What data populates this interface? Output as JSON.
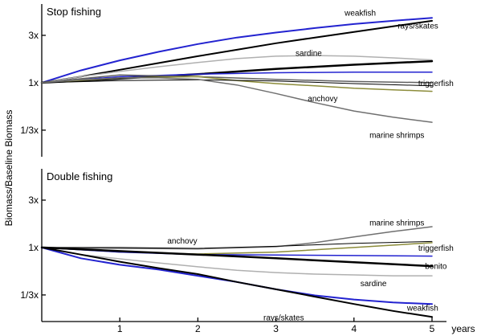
{
  "chart_data": {
    "type": "line",
    "ylabel": "Biomass/Baseline Biomass",
    "x_unit_label": "years",
    "x_ticks": [
      1,
      2,
      3,
      4,
      5
    ],
    "xlim": [
      0,
      5
    ],
    "yscale": "log",
    "y_ticks": [
      {
        "value": 3,
        "label": "3x"
      },
      {
        "value": 1,
        "label": "1x"
      },
      {
        "value": 0.3333,
        "label": "1/3x"
      }
    ],
    "grid": false,
    "legend": "none (direct series labels)",
    "panels": [
      {
        "title": "Stop fishing",
        "ylim": [
          0.18,
          6.2
        ],
        "series": [
          {
            "name": "weakfish",
            "color": "#2323d0",
            "width": 2,
            "x": [
              0,
              0.5,
              1,
              1.5,
              2,
              2.5,
              3,
              3.5,
              4,
              4.5,
              5
            ],
            "y": [
              1,
              1.33,
              1.68,
              2.05,
              2.45,
              2.85,
              3.2,
              3.55,
              3.9,
              4.2,
              4.5
            ]
          },
          {
            "name": "rays/skates",
            "color": "#000000",
            "width": 2,
            "x": [
              0,
              0.5,
              1,
              1.5,
              2,
              2.5,
              3,
              3.5,
              4,
              4.5,
              5
            ],
            "y": [
              1,
              1.15,
              1.35,
              1.58,
              1.85,
              2.15,
              2.5,
              2.85,
              3.25,
              3.7,
              4.2
            ]
          },
          {
            "name": "sardine",
            "color": "#b0b0b0",
            "width": 1.5,
            "x": [
              0,
              0.5,
              1,
              1.5,
              2,
              2.5,
              3,
              3.5,
              4,
              4.5,
              5
            ],
            "y": [
              1,
              1.15,
              1.3,
              1.45,
              1.6,
              1.75,
              1.85,
              1.88,
              1.85,
              1.78,
              1.7
            ]
          },
          {
            "name": "",
            "color": "#000000",
            "width": 2.5,
            "x": [
              0,
              1,
              2,
              3,
              4,
              5
            ],
            "y": [
              1,
              1.1,
              1.22,
              1.38,
              1.52,
              1.65
            ]
          },
          {
            "name": "",
            "color": "#2323d0",
            "width": 1.5,
            "x": [
              0,
              1,
              2,
              3,
              4,
              5
            ],
            "y": [
              1,
              1.15,
              1.22,
              1.26,
              1.28,
              1.28
            ]
          },
          {
            "name": "triggerfish",
            "color": "#606060",
            "width": 1.5,
            "x": [
              0,
              1,
              2,
              3,
              4,
              5
            ],
            "y": [
              1,
              1.2,
              1.15,
              1.08,
              1.03,
              1.0
            ]
          },
          {
            "name": "",
            "color": "#8c8c3a",
            "width": 1.5,
            "x": [
              0,
              1,
              2,
              2.5,
              3,
              3.5,
              4,
              4.5,
              5
            ],
            "y": [
              1,
              1.12,
              1.15,
              1.05,
              0.98,
              0.93,
              0.88,
              0.85,
              0.82
            ]
          },
          {
            "name": "anchovy",
            "color": "#000000",
            "width": 1,
            "x": [
              0,
              1,
              2,
              3,
              4,
              5
            ],
            "y": [
              1,
              1.05,
              1.07,
              1.04,
              0.98,
              0.93
            ]
          },
          {
            "name": "marine shrimps",
            "color": "#707070",
            "width": 1.5,
            "x": [
              0,
              0.5,
              1,
              1.5,
              2,
              2.5,
              3,
              3.5,
              4,
              4.5,
              5
            ],
            "y": [
              1,
              1.07,
              1.12,
              1.12,
              1.08,
              0.95,
              0.78,
              0.63,
              0.52,
              0.45,
              0.4
            ]
          }
        ],
        "labels": [
          {
            "text": "weakfish",
            "x": 4.08,
            "y": 5.1
          },
          {
            "text": "rays/skates",
            "x": 4.82,
            "y": 3.8
          },
          {
            "text": "sardine",
            "x": 3.42,
            "y": 2.0
          },
          {
            "text": "triggerfish",
            "x": 5.05,
            "y": 1.0
          },
          {
            "text": "anchovy",
            "x": 3.6,
            "y": 0.7
          },
          {
            "text": "marine shrimps",
            "x": 4.55,
            "y": 0.3
          }
        ]
      },
      {
        "title": "Double fishing",
        "ylim": [
          0.18,
          6.2
        ],
        "series": [
          {
            "name": "marine shrimps",
            "color": "#707070",
            "width": 1.5,
            "x": [
              0,
              1,
              2,
              3,
              3.5,
              4,
              4.5,
              5
            ],
            "y": [
              1,
              0.98,
              0.97,
              1.02,
              1.12,
              1.28,
              1.45,
              1.62
            ]
          },
          {
            "name": "anchovy",
            "color": "#000000",
            "width": 1,
            "x": [
              0,
              1,
              2,
              3,
              4,
              5
            ],
            "y": [
              1,
              1.0,
              0.98,
              1.03,
              1.1,
              1.15
            ]
          },
          {
            "name": "triggerfish",
            "color": "#8c8c3a",
            "width": 1.5,
            "x": [
              0,
              1,
              2,
              3,
              4,
              5
            ],
            "y": [
              1,
              0.9,
              0.86,
              0.9,
              1.0,
              1.12
            ]
          },
          {
            "name": "",
            "color": "#2323d0",
            "width": 1.5,
            "x": [
              0,
              1,
              2,
              3,
              4,
              5
            ],
            "y": [
              1,
              0.9,
              0.85,
              0.84,
              0.83,
              0.82
            ]
          },
          {
            "name": "bonito",
            "color": "#000000",
            "width": 2.5,
            "x": [
              0,
              1,
              2,
              3,
              4,
              5
            ],
            "y": [
              1,
              0.92,
              0.85,
              0.78,
              0.71,
              0.65
            ]
          },
          {
            "name": "sardine",
            "color": "#b0b0b0",
            "width": 1.5,
            "x": [
              0,
              0.5,
              1,
              1.5,
              2,
              2.5,
              3,
              3.5,
              4,
              4.5,
              5
            ],
            "y": [
              1,
              0.85,
              0.77,
              0.7,
              0.64,
              0.59,
              0.56,
              0.54,
              0.53,
              0.52,
              0.52
            ]
          },
          {
            "name": "weakfish",
            "color": "#2323d0",
            "width": 2,
            "x": [
              0,
              0.5,
              1,
              1.5,
              2,
              2.5,
              3,
              3.5,
              4,
              4.5,
              5
            ],
            "y": [
              1,
              0.78,
              0.67,
              0.6,
              0.52,
              0.45,
              0.38,
              0.33,
              0.3,
              0.28,
              0.27
            ]
          },
          {
            "name": "rays/skates",
            "color": "#000000",
            "width": 2,
            "x": [
              0,
              0.5,
              1,
              1.5,
              2,
              2.5,
              3,
              3.5,
              4,
              4.5,
              5
            ],
            "y": [
              1,
              0.85,
              0.72,
              0.62,
              0.54,
              0.45,
              0.38,
              0.32,
              0.27,
              0.23,
              0.2
            ]
          }
        ],
        "labels": [
          {
            "text": "marine shrimps",
            "x": 4.55,
            "y": 1.8
          },
          {
            "text": "anchovy",
            "x": 1.8,
            "y": 1.18
          },
          {
            "text": "triggerfish",
            "x": 5.05,
            "y": 1.0
          },
          {
            "text": "bonito",
            "x": 5.05,
            "y": 0.66
          },
          {
            "text": "sardine",
            "x": 4.25,
            "y": 0.44
          },
          {
            "text": "weakfish",
            "x": 4.88,
            "y": 0.25
          },
          {
            "text": "rays/skates",
            "x": 3.1,
            "y": 0.2
          }
        ]
      }
    ]
  }
}
